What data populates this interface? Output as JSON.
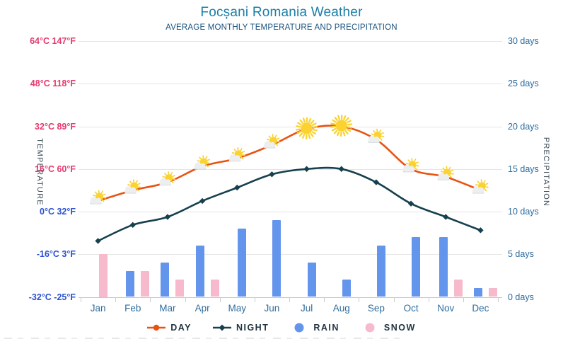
{
  "title": "Focșani Romania Weather",
  "subtitle": "AVERAGE MONTHLY TEMPERATURE AND PRECIPITATION",
  "axes": {
    "left_title": "TEMPERATURE",
    "right_title": "PRECIPITATION",
    "left_ticks": [
      {
        "label": "64°C 147°F",
        "color": "#e63a6e"
      },
      {
        "label": "48°C 118°F",
        "color": "#e63a6e"
      },
      {
        "label": "32°C 89°F",
        "color": "#e63a6e"
      },
      {
        "label": "16°C 60°F",
        "color": "#e63a6e"
      },
      {
        "label": "0°C 32°F",
        "color": "#2b52d2"
      },
      {
        "label": "-16°C 3°F",
        "color": "#2b52d2"
      },
      {
        "label": "-32°C -25°F",
        "color": "#2b52d2"
      }
    ],
    "right_ticks": [
      "30 days",
      "25 days",
      "20 days",
      "15 days",
      "10 days",
      "5 days",
      "0 days"
    ]
  },
  "chart_data": {
    "type": "mixed",
    "title": "Focșani Romania Weather",
    "subtitle": "AVERAGE MONTHLY TEMPERATURE AND PRECIPITATION",
    "categories": [
      "Jan",
      "Feb",
      "Mar",
      "Apr",
      "May",
      "Jun",
      "Jul",
      "Aug",
      "Sep",
      "Oct",
      "Nov",
      "Dec"
    ],
    "temp_axis": {
      "min": -32,
      "max": 64,
      "unit": "°C",
      "position": "left"
    },
    "precip_axis": {
      "min": 0,
      "max": 30,
      "unit": "days",
      "position": "right"
    },
    "grid": true,
    "legend_position": "bottom",
    "series": [
      {
        "name": "DAY",
        "type": "line",
        "unit": "°C",
        "color": "#e85312",
        "values": [
          4,
          8,
          11,
          17,
          20,
          25,
          31,
          32,
          27,
          16,
          13,
          8
        ]
      },
      {
        "name": "NIGHT",
        "type": "line",
        "unit": "°C",
        "color": "#17404f",
        "values": [
          -11,
          -5,
          -2,
          4,
          9,
          14,
          16,
          16,
          11,
          3,
          -2,
          -7
        ]
      },
      {
        "name": "RAIN",
        "type": "bar",
        "unit": "days",
        "color": "#6495ec",
        "values": [
          0,
          3,
          4,
          6,
          8,
          9,
          4,
          2,
          6,
          7,
          7,
          1
        ]
      },
      {
        "name": "SNOW",
        "type": "bar",
        "unit": "days",
        "color": "#f7bacc",
        "values": [
          5,
          3,
          2,
          2,
          0,
          0,
          0,
          0,
          0,
          0,
          2,
          1
        ]
      }
    ],
    "day_icons": [
      "sun-cloud",
      "sun-cloud",
      "sun-cloud",
      "sun-cloud",
      "sun-cloud",
      "sun-cloud",
      "sun",
      "sun",
      "sun-cloud",
      "sun-cloud",
      "sun-cloud",
      "sun-cloud"
    ],
    "icon_colors": {
      "sun": "#fbd230",
      "cloud": "#eceeef",
      "cloud_shadow": "#d4d7d8"
    }
  },
  "legend": {
    "items": [
      {
        "label": "DAY",
        "marker": "line-dot",
        "color": "#e85312"
      },
      {
        "label": "NIGHT",
        "marker": "line-diamond",
        "color": "#17404f"
      },
      {
        "label": "RAIN",
        "marker": "dot",
        "color": "#6495ec"
      },
      {
        "label": "SNOW",
        "marker": "dot",
        "color": "#f7bacc"
      }
    ]
  }
}
